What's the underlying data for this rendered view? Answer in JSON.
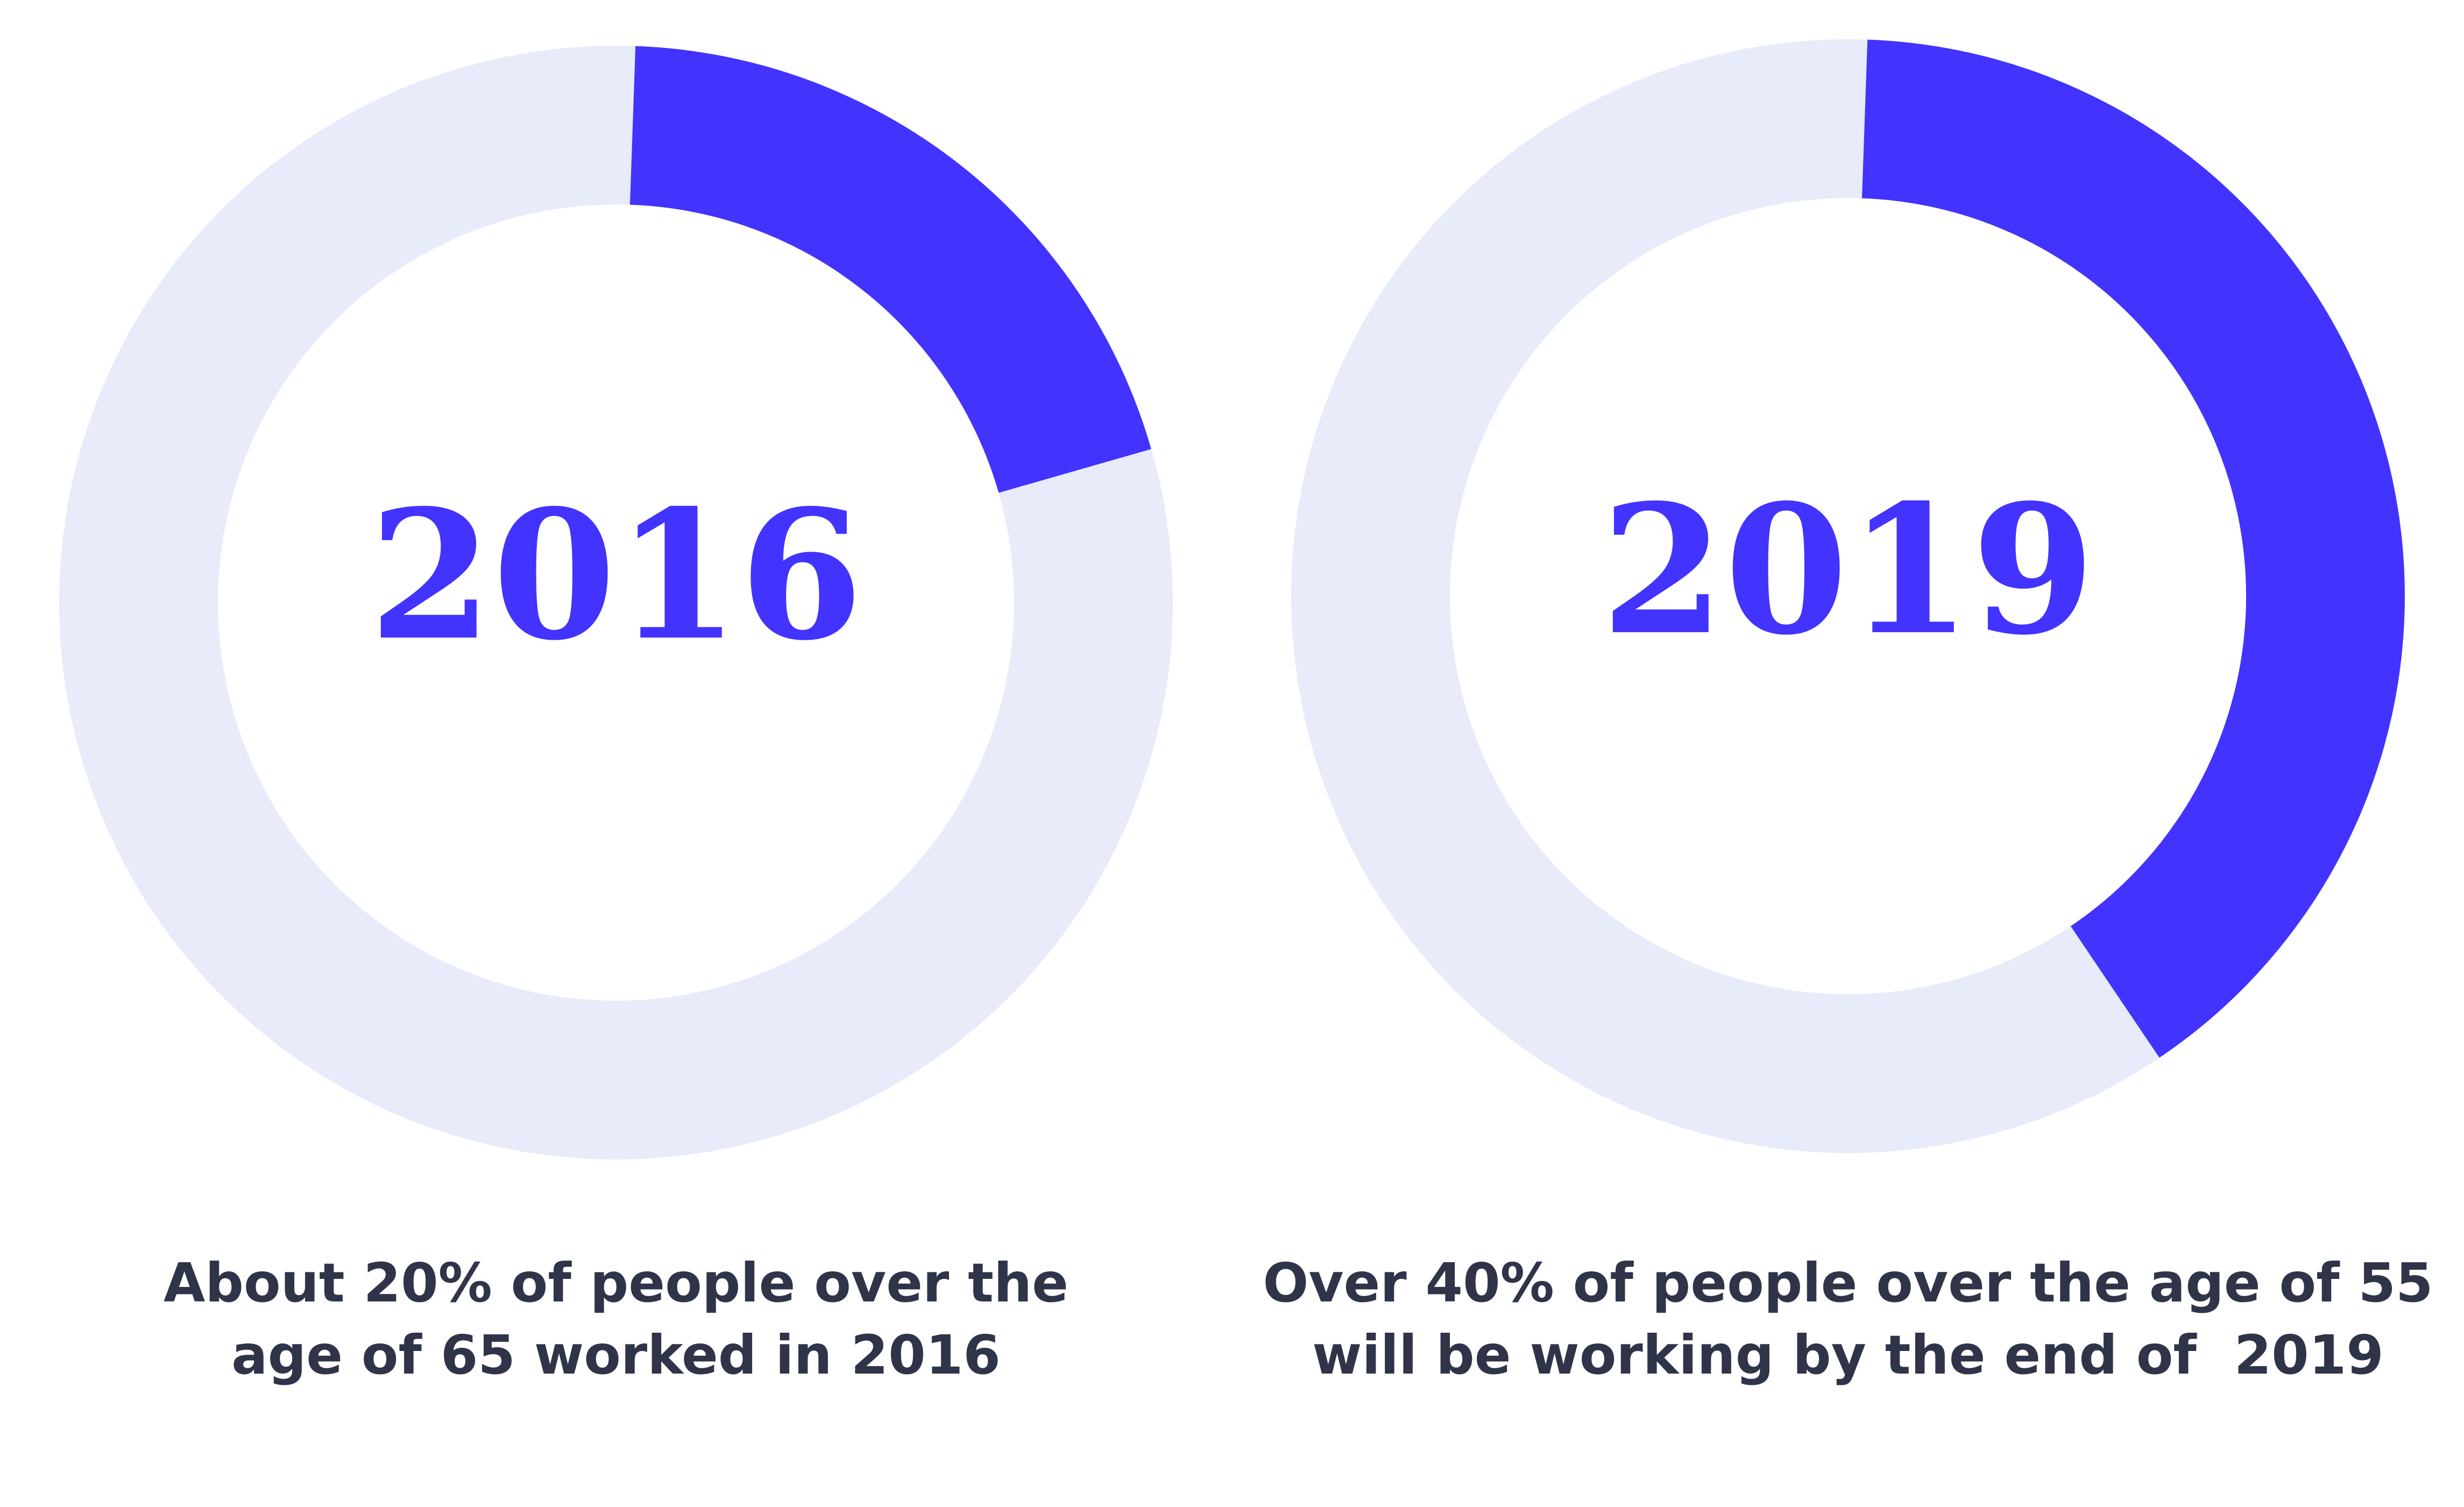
{
  "colors": {
    "accent": "#4233ff",
    "track": "#e7ebfa",
    "caption_text": "#2f3449"
  },
  "chart_data": [
    {
      "type": "pie",
      "style": "donut",
      "center_label": "2016",
      "slices": [
        {
          "value": 20,
          "color": "#4233ff"
        },
        {
          "value": 80,
          "color": "#e7ebfa"
        }
      ],
      "start_angle_deg": 2,
      "caption_lines": [
        "About 20% of people over the",
        "age of 65 worked in 2016"
      ]
    },
    {
      "type": "pie",
      "style": "donut",
      "center_label": "2019",
      "slices": [
        {
          "value": 40,
          "color": "#4233ff"
        },
        {
          "value": 60,
          "color": "#e7ebfa"
        }
      ],
      "start_angle_deg": 2,
      "caption_lines": [
        "Over 40% of people over the age of 55",
        "will be working by the end of  2019"
      ]
    }
  ]
}
